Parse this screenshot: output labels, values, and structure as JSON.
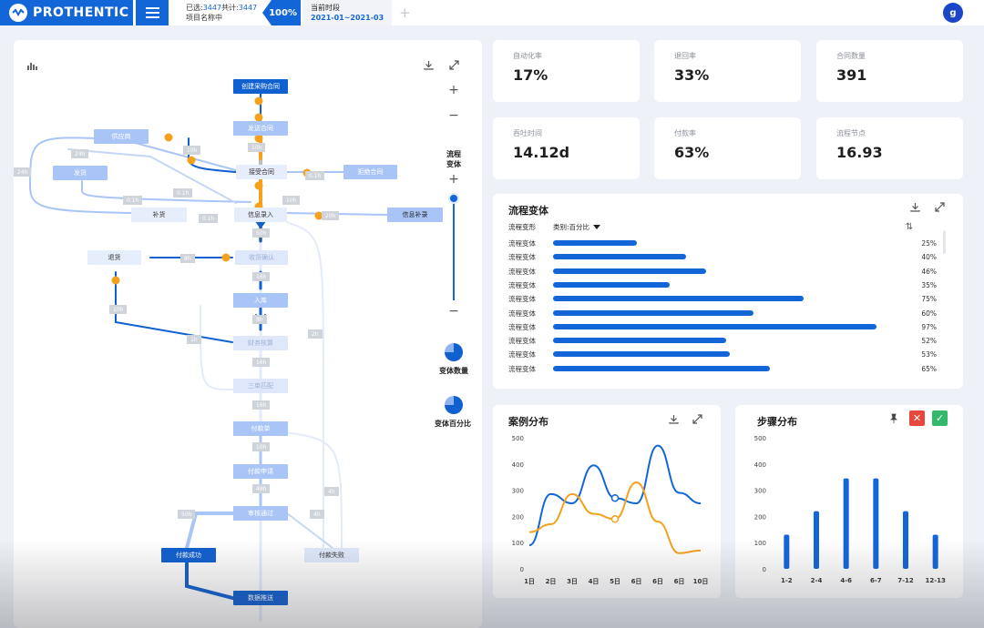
{
  "app": {
    "brand": "PROTHENTIC"
  },
  "selection": {
    "selected_label": "已选:",
    "selected": "3447",
    "total_label": "共计:",
    "total": "3447",
    "project": "项目名称中",
    "percent": "100%"
  },
  "period": {
    "label": "当前时段",
    "range": "2021-01~2021-03"
  },
  "tabs": {
    "add": "+"
  },
  "user": {
    "avatar_letter": "g"
  },
  "stats": [
    {
      "label": "自动化率",
      "value": "17%"
    },
    {
      "label": "退回率",
      "value": "33%"
    },
    {
      "label": "合同数量",
      "value": "391"
    },
    {
      "label": "吞吐时间",
      "value": "14.12d"
    },
    {
      "label": "付款率",
      "value": "63%"
    },
    {
      "label": "流程节点",
      "value": "16.93"
    }
  ],
  "flow": {
    "nodes": {
      "n1": "创建采购合同",
      "n2": "发送合同",
      "n3": "接受合同",
      "n4": "拒绝合同",
      "n5": "供应商",
      "n6": "发货",
      "n7": "补货",
      "n8": "信息录入",
      "n9": "信息补录",
      "n10": "退货",
      "n11": "收货确认",
      "n12": "入库",
      "n13": "财务核算",
      "n14": "三单匹配",
      "n15": "付款单",
      "n16": "付款申请",
      "n17": "审核通过",
      "n18": "付款成功",
      "n19": "付款失败",
      "n20": "数据推送"
    },
    "edge_labels": [
      "10h",
      "10h",
      "24h",
      "24h",
      "0.1h",
      "0.1h",
      "0.1h",
      "0.1h",
      "10h",
      "20h",
      "50h",
      "8h",
      "10h",
      "16h",
      "16h",
      "16h",
      "10h",
      "48h",
      "50h",
      "4h",
      "2h",
      "4h",
      "8h",
      "1h"
    ],
    "controls": {
      "variant_title": "流程\n变体",
      "variant_count": "变体数量",
      "variant_percent": "变体百分比",
      "plus": "+",
      "minus": "−"
    }
  },
  "variants": {
    "title": "流程变体",
    "col_name": "流程变形",
    "col_category": "类别:百分比",
    "rows": [
      {
        "name": "流程变体",
        "value": 25,
        "label": "25%"
      },
      {
        "name": "流程变体",
        "value": 40,
        "label": "40%"
      },
      {
        "name": "流程变体",
        "value": 46,
        "label": "46%"
      },
      {
        "name": "流程变体",
        "value": 35,
        "label": "35%"
      },
      {
        "name": "流程变体",
        "value": 75,
        "label": "75%"
      },
      {
        "name": "流程变体",
        "value": 60,
        "label": "60%"
      },
      {
        "name": "流程变体",
        "value": 97,
        "label": "97%"
      },
      {
        "name": "流程变体",
        "value": 52,
        "label": "52%"
      },
      {
        "name": "流程变体",
        "value": 53,
        "label": "53%"
      },
      {
        "name": "流程变体",
        "value": 65,
        "label": "65%"
      }
    ]
  },
  "colors": {
    "primary": "#1366d8",
    "orange": "#f5a11c",
    "red": "#e8483b",
    "green": "#34b96b"
  },
  "chart_data": [
    {
      "type": "line",
      "title": "案例分布",
      "x": [
        "1日",
        "2日",
        "3日",
        "4日",
        "5日",
        "6日",
        "6日",
        "6日",
        "10日"
      ],
      "ylim": [
        0,
        500
      ],
      "yticks": [
        0,
        100,
        200,
        300,
        400,
        500
      ],
      "series": [
        {
          "values": [
            90,
            285,
            250,
            395,
            270,
            250,
            470,
            290,
            250
          ]
        },
        {
          "values": [
            140,
            170,
            285,
            210,
            190,
            330,
            180,
            60,
            70
          ]
        }
      ]
    },
    {
      "type": "bar",
      "title": "步骤分布",
      "categories": [
        "1-2",
        "2-4",
        "4-6",
        "6-7",
        "7-12",
        "12-13"
      ],
      "values": [
        130,
        220,
        345,
        345,
        220,
        130
      ],
      "ylim": [
        0,
        500
      ],
      "yticks": [
        0,
        100,
        200,
        300,
        400,
        500
      ]
    }
  ]
}
